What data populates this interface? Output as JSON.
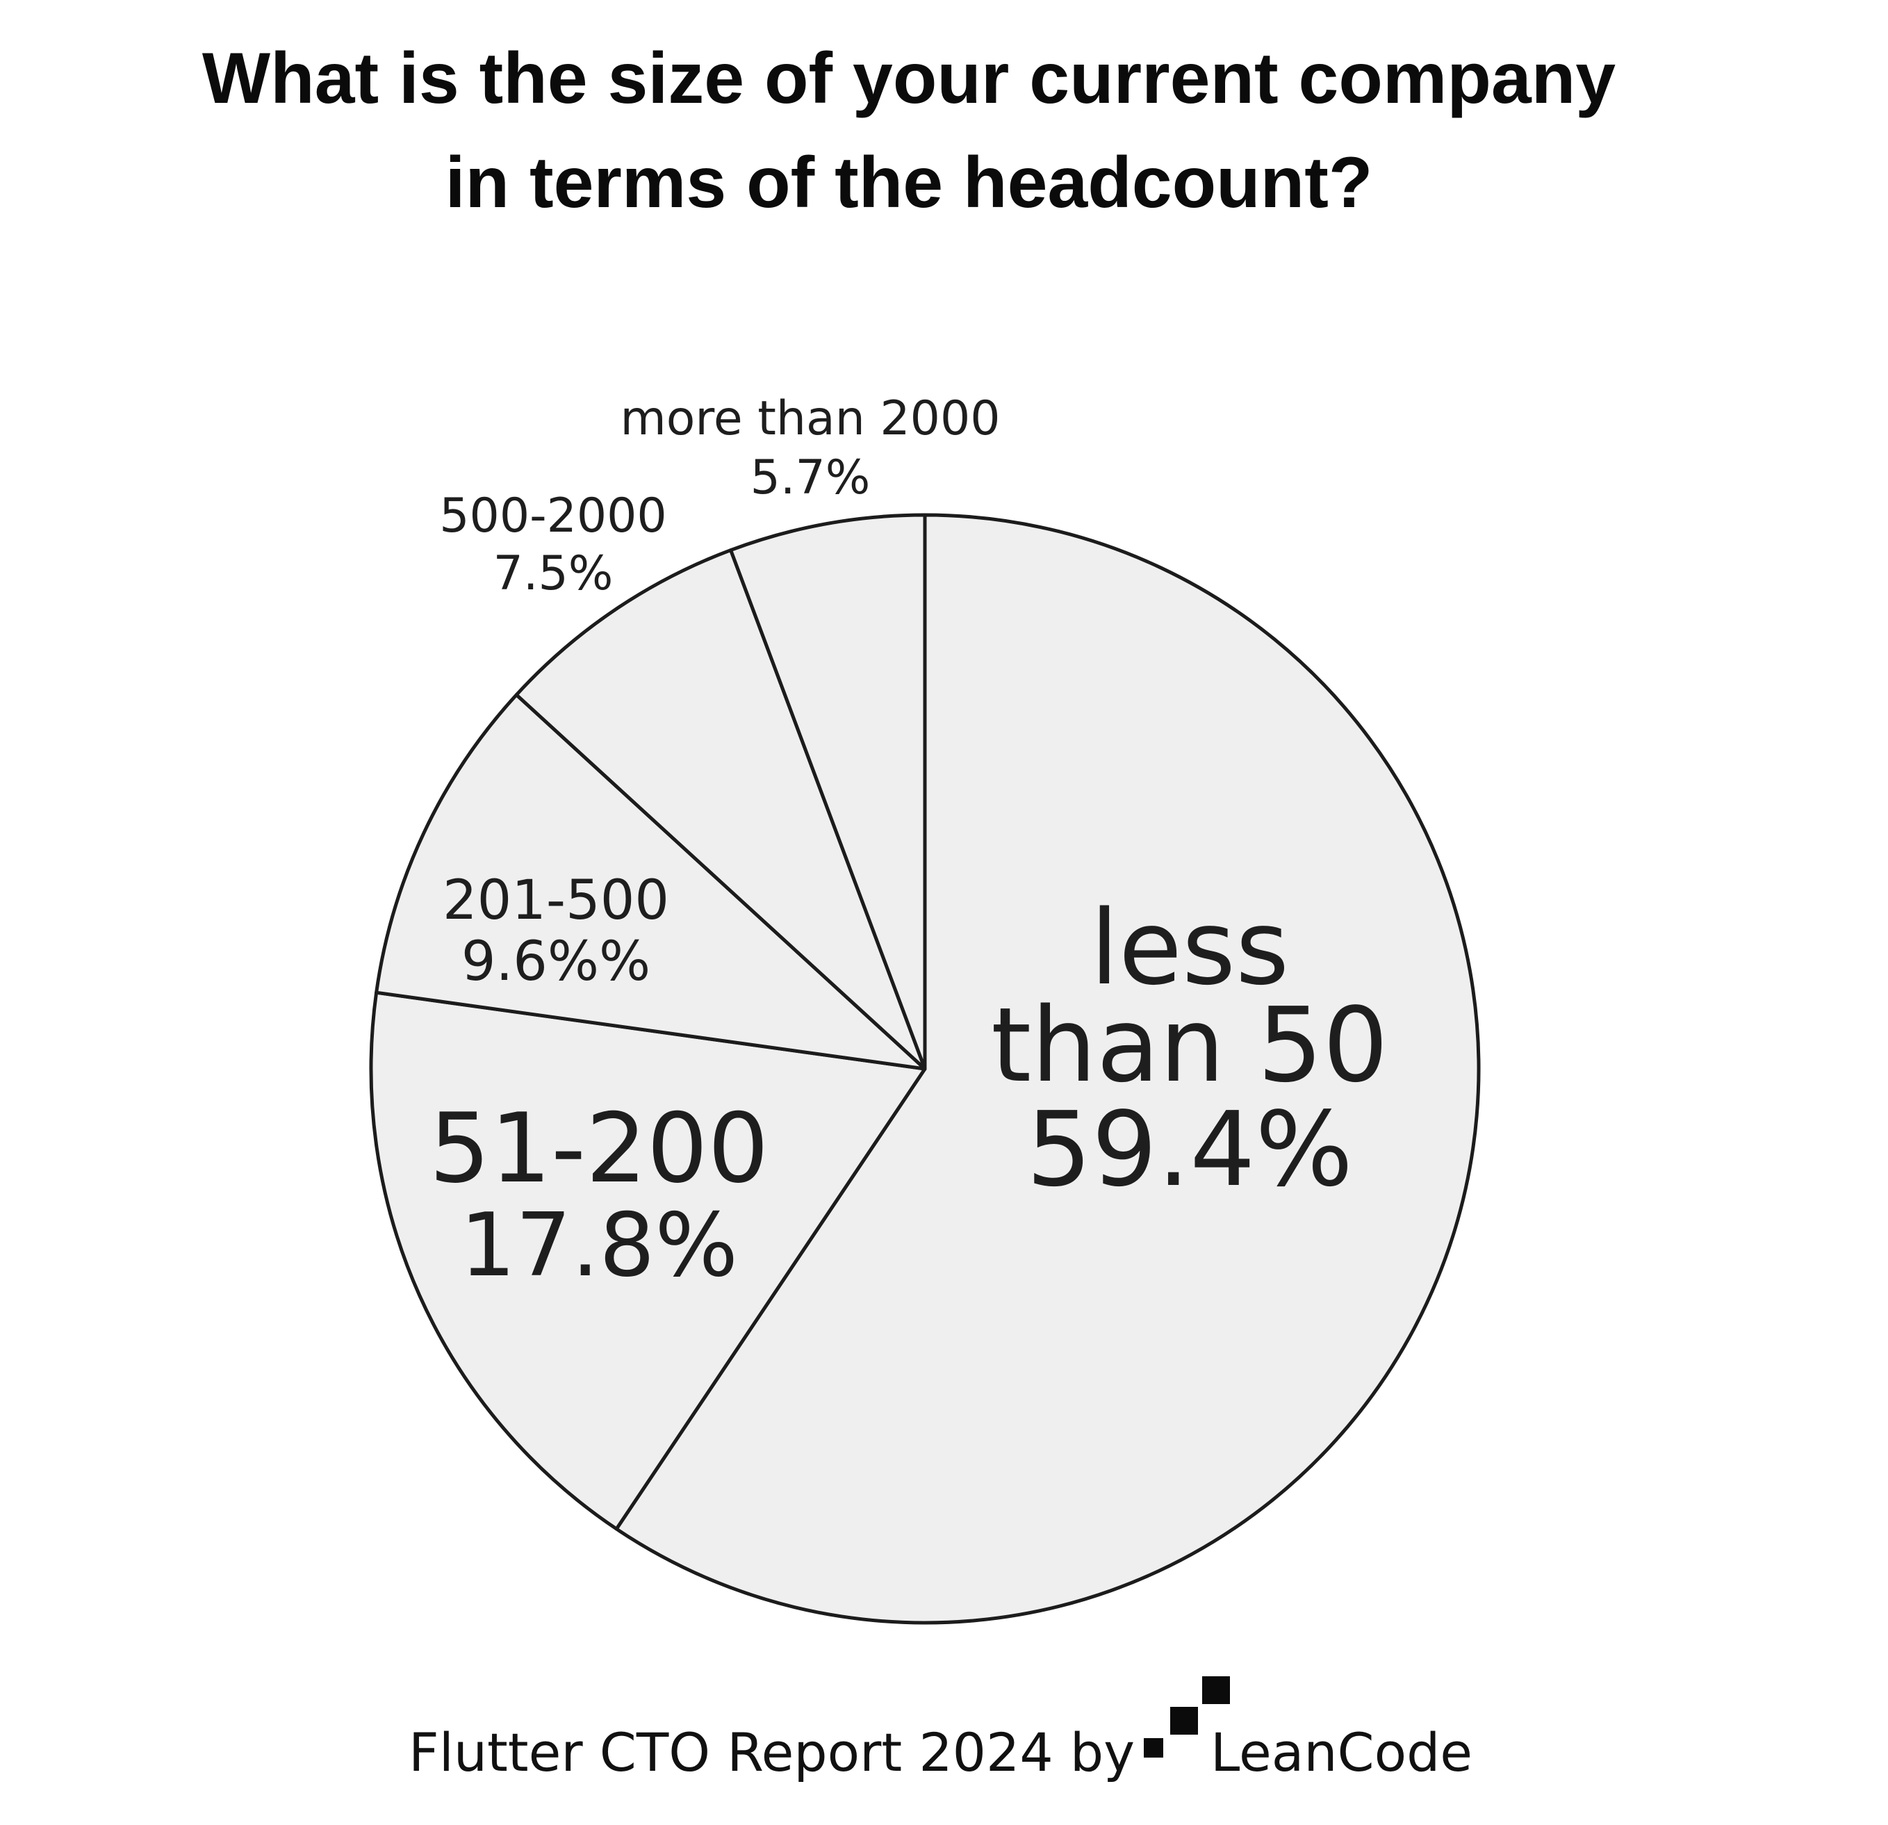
{
  "title": {
    "line1": "What is the size of your current company",
    "line2": "in terms of the headcount?"
  },
  "chart_data": {
    "type": "pie",
    "title": "What is the size of your current company in terms of the headcount?",
    "slices": [
      {
        "label": "less than 50",
        "label_lines": [
          "less",
          "than 50"
        ],
        "value": 59.4,
        "value_text": "59.4%"
      },
      {
        "label": "51-200",
        "label_lines": [
          "51-200"
        ],
        "value": 17.8,
        "value_text": "17.8%"
      },
      {
        "label": "201-500",
        "label_lines": [
          "201-500"
        ],
        "value": 9.6,
        "value_text": "9.6%%"
      },
      {
        "label": "500-2000",
        "label_lines": [
          "500-2000"
        ],
        "value": 7.5,
        "value_text": "7.5%"
      },
      {
        "label": "more than 2000",
        "label_lines": [
          "more than 2000"
        ],
        "value": 5.7,
        "value_text": "5.7%"
      }
    ],
    "start_angle": "12 o'clock",
    "direction": "clockwise",
    "colors": {
      "fill": "#efefef",
      "stroke": "#1c1c1c",
      "text": "#1e1e1e"
    }
  },
  "footer": {
    "text": "Flutter CTO Report 2024 by",
    "brand": "LeanCode",
    "logo_icon": "leancode-logo-icon"
  }
}
